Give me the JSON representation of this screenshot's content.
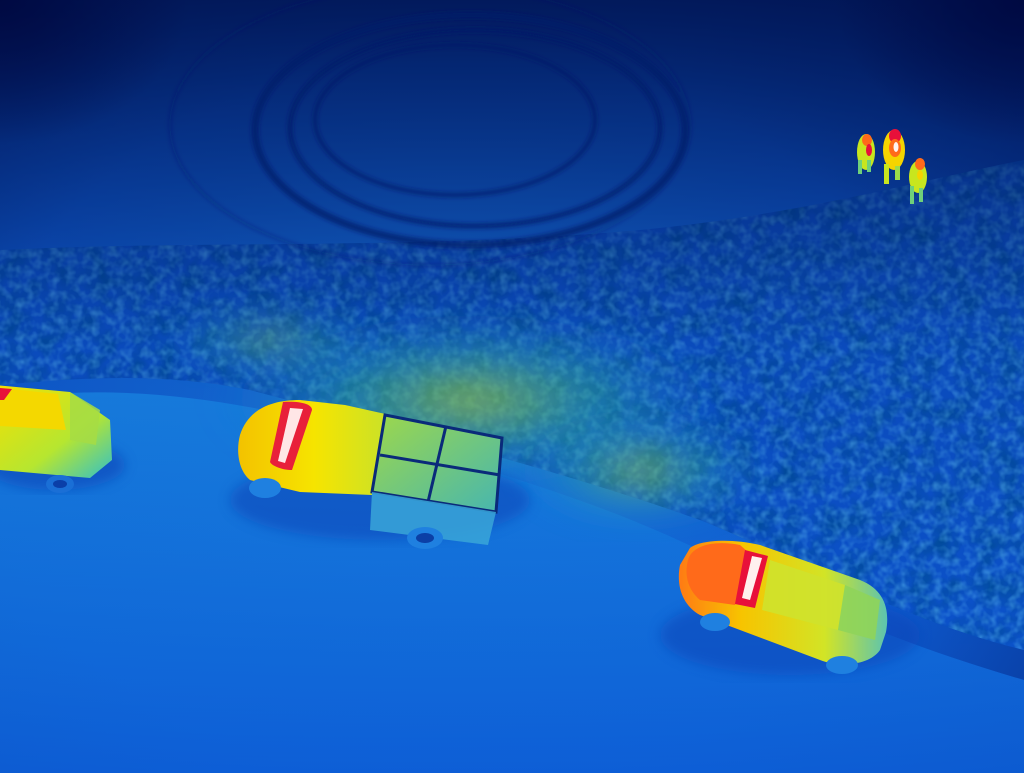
{
  "image": {
    "kind": "thermal-aerial-photo",
    "palette": {
      "cold_dark": "#001a6e",
      "cold": "#0a4fd6",
      "cool": "#1f86f0",
      "mild": "#24c8b4",
      "warm": "#c8e61e",
      "hot": "#f5d400",
      "hotter": "#ff6a1a",
      "hottest": "#e8103a",
      "white_hot": "#fff4f0"
    },
    "objects": [
      {
        "name": "vehicle-left",
        "type": "car"
      },
      {
        "name": "pickup-truck",
        "type": "truck"
      },
      {
        "name": "sedan-right",
        "type": "car"
      },
      {
        "name": "person-1",
        "type": "person"
      },
      {
        "name": "person-2",
        "type": "person"
      },
      {
        "name": "person-3",
        "type": "person"
      }
    ]
  }
}
